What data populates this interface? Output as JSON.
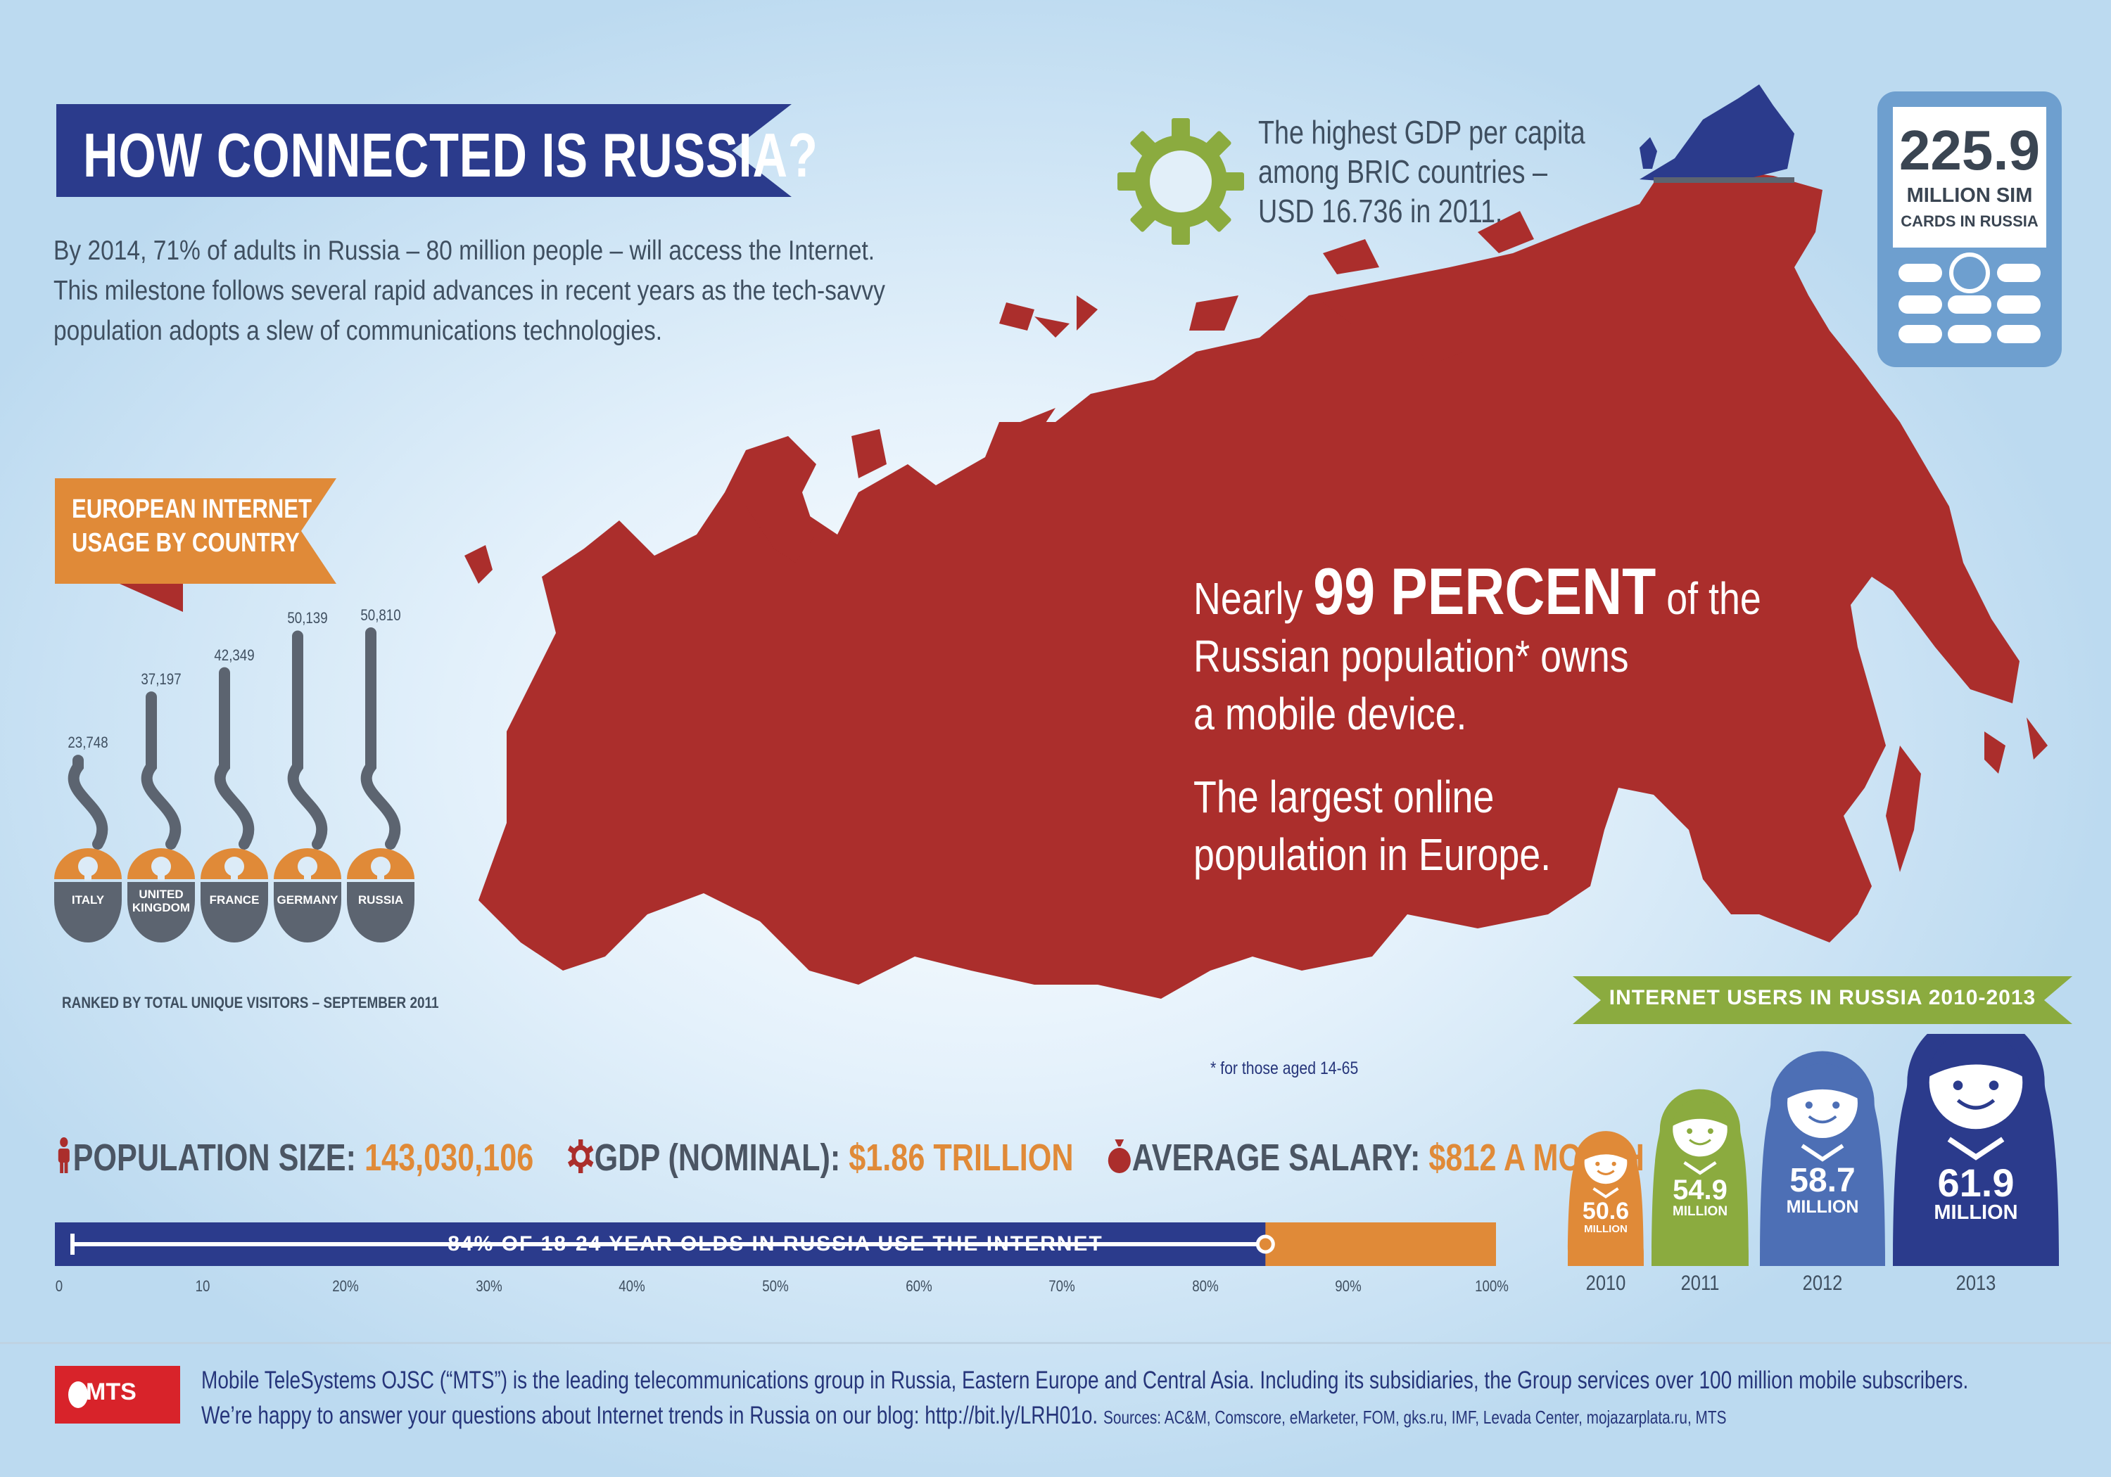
{
  "header": {
    "title": "HOW CONNECTED IS RUSSIA?",
    "intro_lines": [
      "By 2014, 71% of adults in Russia – 80 million people – will access the Internet.",
      "This milestone follows several rapid advances in recent years as the tech-savvy",
      "population adopts a slew of communications technologies."
    ]
  },
  "gdp_per_capita": {
    "icon": "gear-icon",
    "lines": [
      "The highest GDP per capita",
      "among BRIC countries –",
      "USD 16.736 in 2011."
    ]
  },
  "sim_cards": {
    "icon": "mobile-phone-icon",
    "value": "225.9",
    "line1": "MILLION SIM",
    "line2": "CARDS IN RUSSIA"
  },
  "map": {
    "fill_color": "#ab2e2c",
    "line1_pre": "Nearly ",
    "line1_big": "99 PERCENT",
    "line1_post": " of the",
    "line2": "Russian population* owns",
    "line3": "a mobile device.",
    "line4": "The largest online",
    "line5": "population in Europe.",
    "footnote": "* for those aged 14-65"
  },
  "eu_usage": {
    "title_lines": [
      "EUROPEAN INTERNET",
      "USAGE BY COUNTRY"
    ],
    "note": "RANKED BY TOTAL UNIQUE VISITORS – SEPTEMBER 2011",
    "countries": [
      {
        "name": "ITALY",
        "value": "23,748",
        "amount": 23748
      },
      {
        "name": "UNITED KINGDOM",
        "value": "37,197",
        "amount": 37197
      },
      {
        "name": "FRANCE",
        "value": "42,349",
        "amount": 42349
      },
      {
        "name": "GERMANY",
        "value": "50,139",
        "amount": 50139
      },
      {
        "name": "RUSSIA",
        "value": "50,810",
        "amount": 50810
      }
    ]
  },
  "stats": {
    "population_label": "POPULATION SIZE:",
    "population_value": "143,030,106",
    "gdp_label": "GDP (NOMINAL):",
    "gdp_value": "$1.86 TRILLION",
    "salary_label": "AVERAGE SALARY:",
    "salary_value": "$812 A MONTH"
  },
  "youth_bar": {
    "label": "84% OF 18-24 YEAR OLDS IN RUSSIA USE THE INTERNET",
    "percent": 84,
    "ticks": [
      "0",
      "10",
      "20%",
      "30%",
      "40%",
      "50%",
      "60%",
      "70%",
      "80%",
      "90%",
      "100%"
    ]
  },
  "internet_users": {
    "title": "INTERNET USERS IN RUSSIA 2010-2013",
    "unit": "MILLION",
    "years": [
      {
        "year": "2010",
        "value": "50.6",
        "color": "#e08a38"
      },
      {
        "year": "2011",
        "value": "54.9",
        "color": "#8bab3f"
      },
      {
        "year": "2012",
        "value": "58.7",
        "color": "#4d6fb5"
      },
      {
        "year": "2013",
        "value": "61.9",
        "color": "#2b3b8c"
      }
    ]
  },
  "footer": {
    "logo_text": "MTS",
    "line1": "Mobile TeleSystems OJSC (“MTS”) is the leading telecommunications group in Russia, Eastern Europe and Central Asia. Including its subsidiaries, the Group services over 100 million mobile subscribers.",
    "line2": "We’re happy to answer your questions about Internet trends in Russia on our blog:  http://bit.ly/LRH01o.",
    "sources": "Sources: AC&M, Comscore, eMarketer, FOM, gks.ru, IMF, Levada Center, mojazarplata.ru, MTS"
  },
  "colors": {
    "navy": "#2b3b8c",
    "orange": "#e08a38",
    "green": "#8bab3f",
    "red": "#ab2e2c",
    "gray": "#5c6470",
    "phone": "#6e9fcf"
  }
}
